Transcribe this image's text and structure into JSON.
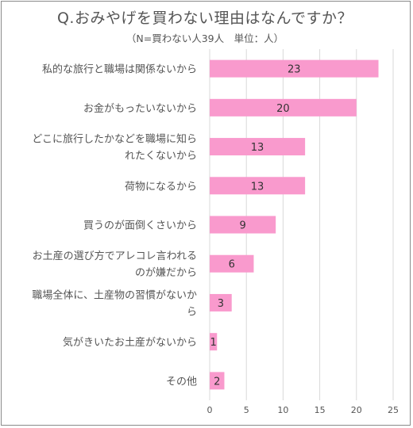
{
  "chart_data": {
    "type": "bar",
    "orientation": "horizontal",
    "title": "Q.おみやげを買わない理由はなんですか？",
    "subtitle": "（N=買わない人39人　単位：人）",
    "categories": [
      "私的な旅行と職場は関係ないから",
      "お金がもったいないから",
      "どこに旅行したかなどを職場に知られたくないから",
      "荷物になるから",
      "買うのが面倒くさいから",
      "お土産の選び方でアレコレ言われるのが嫌だから",
      "職場全体に、土産物の習慣がないから",
      "気がきいたお土産がないから",
      "その他"
    ],
    "category_lines": [
      [
        "私的な旅行と職場は関係ないから"
      ],
      [
        "お金がもったいないから"
      ],
      [
        "どこに旅行したかなどを職場に知ら",
        "れたくないから"
      ],
      [
        "荷物になるから"
      ],
      [
        "買うのが面倒くさいから"
      ],
      [
        "お土産の選び方でアレコレ言われる",
        "のが嫌だから"
      ],
      [
        "職場全体に、土産物の習慣がないか",
        "ら"
      ],
      [
        "気がきいたお土産がないから"
      ],
      [
        "その他"
      ]
    ],
    "values": [
      23,
      20,
      13,
      13,
      9,
      6,
      3,
      1,
      2
    ],
    "xlim": [
      0,
      25
    ],
    "xticks": [
      0,
      5,
      10,
      15,
      20,
      25
    ],
    "grid": true,
    "bar_color": "#f99acd",
    "grid_color": "#d9d9d9"
  }
}
